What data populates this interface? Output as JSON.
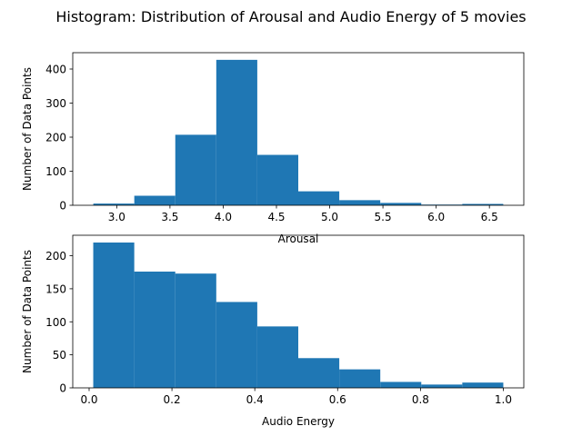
{
  "figure": {
    "title": "Histogram: Distribution of Arousal and Audio Energy of 5 movies",
    "bar_color": "#1f77b4"
  },
  "chart_data": [
    {
      "type": "bar",
      "subtype": "histogram",
      "xlabel": "Arousal",
      "ylabel": "Number of Data Points",
      "bin_edges": [
        2.78,
        3.165,
        3.55,
        3.935,
        4.32,
        4.705,
        5.09,
        5.475,
        5.86,
        6.245,
        6.63
      ],
      "values": [
        5,
        28,
        207,
        427,
        148,
        41,
        15,
        7,
        2,
        4
      ],
      "xlim": [
        2.587,
        6.823
      ],
      "ylim": [
        0,
        448
      ],
      "xticks": [
        3.0,
        3.5,
        4.0,
        4.5,
        5.0,
        5.5,
        6.0,
        6.5
      ],
      "xtick_labels": [
        "3.0",
        "3.5",
        "4.0",
        "4.5",
        "5.0",
        "5.5",
        "6.0",
        "6.5"
      ],
      "yticks": [
        0,
        100,
        200,
        300,
        400
      ],
      "ytick_labels": [
        "0",
        "100",
        "200",
        "300",
        "400"
      ]
    },
    {
      "type": "bar",
      "subtype": "histogram",
      "xlabel": "Audio Energy",
      "ylabel": "Number of Data Points",
      "bin_edges": [
        0.01,
        0.109,
        0.208,
        0.307,
        0.406,
        0.505,
        0.604,
        0.703,
        0.802,
        0.901,
        1.0
      ],
      "values": [
        220,
        176,
        173,
        130,
        93,
        45,
        28,
        9,
        5,
        8
      ],
      "xlim": [
        -0.0395,
        1.0495
      ],
      "ylim": [
        0,
        231
      ],
      "xticks": [
        0.0,
        0.2,
        0.4,
        0.6,
        0.8,
        1.0
      ],
      "xtick_labels": [
        "0.0",
        "0.2",
        "0.4",
        "0.6",
        "0.8",
        "1.0"
      ],
      "yticks": [
        0,
        50,
        100,
        150,
        200
      ],
      "ytick_labels": [
        "0",
        "50",
        "100",
        "150",
        "200"
      ]
    }
  ]
}
